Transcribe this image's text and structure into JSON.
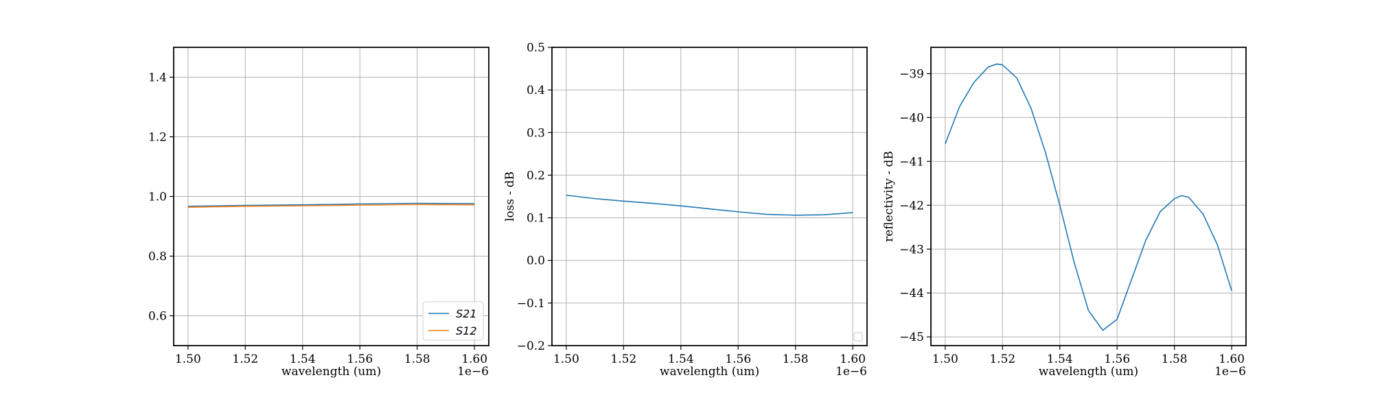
{
  "chart_data": [
    {
      "type": "line",
      "xlabel": "wavelength (um)",
      "ylabel": "",
      "x_offset_label": "1e−6",
      "xlim": [
        1.495,
        1.605
      ],
      "ylim": [
        0.5,
        1.5
      ],
      "x_ticks": [
        1.5,
        1.52,
        1.54,
        1.56,
        1.58,
        1.6
      ],
      "x_tick_labels": [
        "1.50",
        "1.52",
        "1.54",
        "1.56",
        "1.58",
        "1.60"
      ],
      "y_ticks": [
        0.6,
        0.8,
        1.0,
        1.2,
        1.4
      ],
      "y_tick_labels": [
        "0.6",
        "0.8",
        "1.0",
        "1.2",
        "1.4"
      ],
      "grid": true,
      "legend": "lower-right",
      "x": [
        1.5,
        1.52,
        1.54,
        1.56,
        1.58,
        1.6
      ],
      "series": [
        {
          "name": "S21",
          "color": "#1f77b4",
          "values": [
            0.967,
            0.97,
            0.972,
            0.975,
            0.977,
            0.976
          ]
        },
        {
          "name": "S12",
          "color": "#ff7f0e",
          "values": [
            0.964,
            0.967,
            0.969,
            0.971,
            0.973,
            0.972
          ]
        }
      ]
    },
    {
      "type": "line",
      "xlabel": "wavelength (um)",
      "ylabel": "loss - dB",
      "x_offset_label": "1e−6",
      "xlim": [
        1.495,
        1.605
      ],
      "ylim": [
        -0.2,
        0.5
      ],
      "x_ticks": [
        1.5,
        1.52,
        1.54,
        1.56,
        1.58,
        1.6
      ],
      "x_tick_labels": [
        "1.50",
        "1.52",
        "1.54",
        "1.56",
        "1.58",
        "1.60"
      ],
      "y_ticks": [
        -0.2,
        -0.1,
        0.0,
        0.1,
        0.2,
        0.3,
        0.4,
        0.5
      ],
      "y_tick_labels": [
        "−0.2",
        "−0.1",
        "0.0",
        "0.1",
        "0.2",
        "0.3",
        "0.4",
        "0.5"
      ],
      "grid": true,
      "legend": "lower-right (empty)",
      "x": [
        1.5,
        1.51,
        1.52,
        1.53,
        1.54,
        1.55,
        1.56,
        1.57,
        1.58,
        1.59,
        1.6
      ],
      "series": [
        {
          "color": "#1f77b4",
          "values": [
            0.153,
            0.145,
            0.139,
            0.134,
            0.128,
            0.121,
            0.114,
            0.108,
            0.106,
            0.107,
            0.112
          ]
        }
      ]
    },
    {
      "type": "line",
      "xlabel": "wavelength (um)",
      "ylabel": "reflectivity - dB",
      "x_offset_label": "1e−6",
      "xlim": [
        1.495,
        1.605
      ],
      "ylim": [
        -45.2,
        -38.4
      ],
      "x_ticks": [
        1.5,
        1.52,
        1.54,
        1.56,
        1.58,
        1.6
      ],
      "x_tick_labels": [
        "1.50",
        "1.52",
        "1.54",
        "1.56",
        "1.58",
        "1.60"
      ],
      "y_ticks": [
        -45,
        -44,
        -43,
        -42,
        -41,
        -40,
        -39
      ],
      "y_tick_labels": [
        "−45",
        "−44",
        "−43",
        "−42",
        "−41",
        "−40",
        "−39"
      ],
      "grid": true,
      "x": [
        1.5,
        1.505,
        1.51,
        1.515,
        1.518,
        1.52,
        1.525,
        1.53,
        1.535,
        1.54,
        1.545,
        1.55,
        1.555,
        1.56,
        1.565,
        1.57,
        1.575,
        1.58,
        1.5825,
        1.585,
        1.59,
        1.595,
        1.6
      ],
      "series": [
        {
          "color": "#1f77b4",
          "values": [
            -40.6,
            -39.75,
            -39.2,
            -38.85,
            -38.78,
            -38.8,
            -39.1,
            -39.8,
            -40.8,
            -42.0,
            -43.3,
            -44.4,
            -44.85,
            -44.6,
            -43.7,
            -42.8,
            -42.15,
            -41.85,
            -41.78,
            -41.82,
            -42.2,
            -42.9,
            -43.95
          ]
        }
      ]
    }
  ]
}
